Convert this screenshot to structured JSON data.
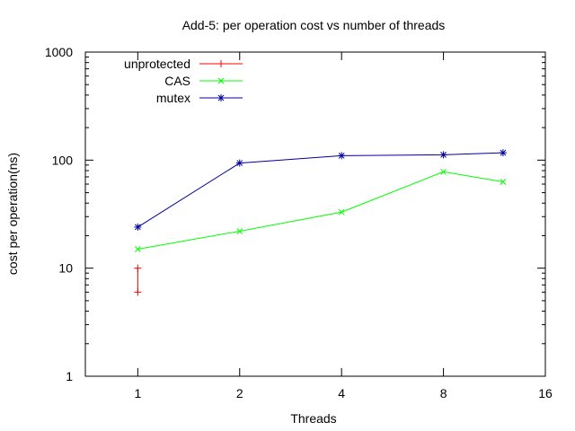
{
  "chart_data": {
    "type": "line",
    "title": "Add-5: per operation cost vs number of threads",
    "xlabel": "Threads",
    "ylabel": "cost per operation(ns)",
    "xscale": "log2",
    "yscale": "log10",
    "xlim": [
      0.7,
      16
    ],
    "ylim": [
      1,
      1000
    ],
    "xticks": [
      1,
      2,
      4,
      8,
      16
    ],
    "yticks": [
      1,
      10,
      100,
      1000
    ],
    "grid": false,
    "legend_position": "top-left",
    "series": [
      {
        "name": "unprotected",
        "color": "#ff0000",
        "marker": "plus",
        "points": [
          [
            1,
            6
          ],
          [
            1,
            10
          ]
        ]
      },
      {
        "name": "CAS",
        "color": "#00ff00",
        "marker": "x",
        "points": [
          [
            1,
            15
          ],
          [
            2,
            22
          ],
          [
            4,
            33
          ],
          [
            8,
            78
          ],
          [
            12,
            63
          ]
        ]
      },
      {
        "name": "mutex",
        "color": "#0000a0",
        "marker": "star",
        "points": [
          [
            1,
            24
          ],
          [
            2,
            94
          ],
          [
            4,
            110
          ],
          [
            8,
            112
          ],
          [
            12,
            117
          ]
        ]
      }
    ]
  }
}
